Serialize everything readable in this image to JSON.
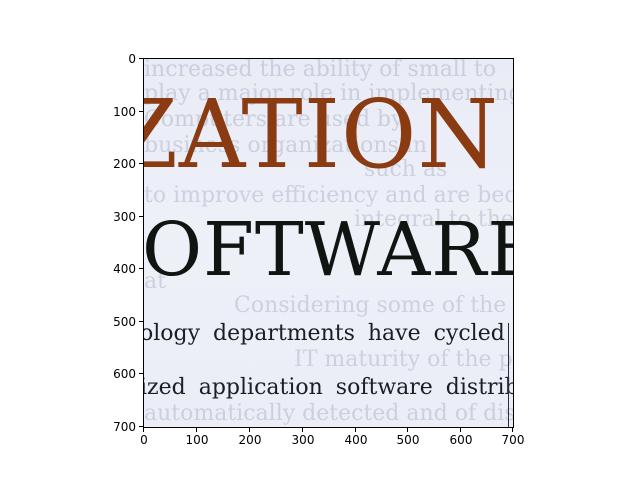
{
  "image": {
    "headline_line_1": "ZATION",
    "headline_line_2": "OFTWARE",
    "body_line_1": "ology departments have cycled",
    "body_line_2": "ized application software distribu-",
    "background_text": [
      "increased the ability of small to",
      "play a major role in implementing",
      "Computers are used by",
      "business organizations in",
      "such as",
      "to improve efficiency and are becoming",
      "integral to the",
      "at",
      "Considering some of the considerations",
      "IT maturity of the participants",
      "automatically detected and of distribution"
    ],
    "colors": {
      "headline_1": "#8a3b12",
      "headline_2": "#0f1612",
      "paper": "#eceef7"
    }
  },
  "axes": {
    "x_ticks": [
      "0",
      "100",
      "200",
      "300",
      "400",
      "500",
      "600",
      "700"
    ],
    "y_ticks": [
      "0",
      "100",
      "200",
      "300",
      "400",
      "500",
      "600",
      "700"
    ]
  }
}
